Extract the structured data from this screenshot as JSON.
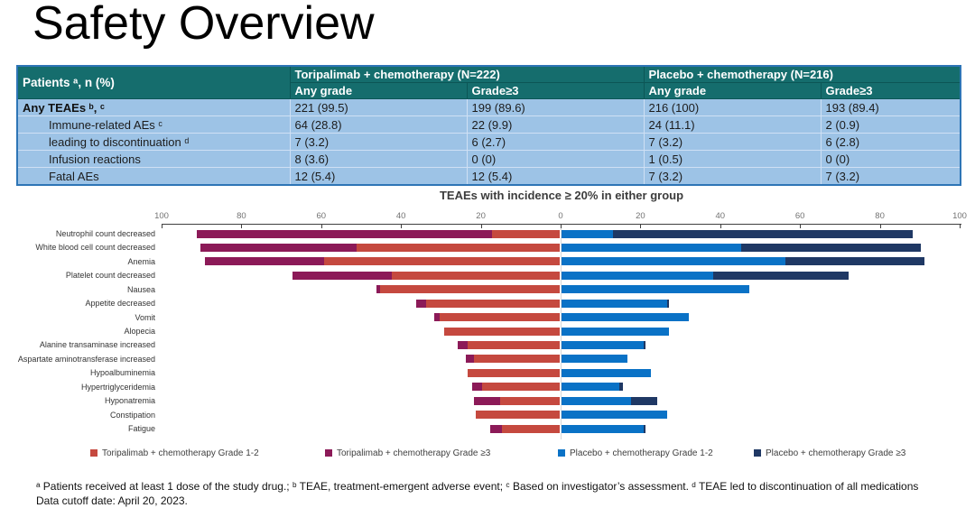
{
  "page_title": "Safety Overview",
  "table": {
    "corner_label": "Patients ᵃ, n (%)",
    "group_headers": [
      "Toripalimab + chemotherapy (N=222)",
      "Placebo + chemotherapy (N=216)"
    ],
    "sub_headers": [
      "Any grade",
      "Grade≥3",
      "Any grade",
      "Grade≥3"
    ],
    "rows": [
      {
        "label": "Any TEAEs ᵇ, ᶜ",
        "bold": true,
        "indent": false,
        "values": [
          "221 (99.5)",
          "199 (89.6)",
          "216 (100)",
          "193 (89.4)"
        ]
      },
      {
        "label": "Immune-related AEs ᶜ",
        "bold": false,
        "indent": true,
        "values": [
          "64 (28.8)",
          "22 (9.9)",
          "24 (11.1)",
          "2 (0.9)"
        ]
      },
      {
        "label": "leading to discontinuation ᵈ",
        "bold": false,
        "indent": true,
        "values": [
          "7 (3.2)",
          "6 (2.7)",
          "7 (3.2)",
          "6 (2.8)"
        ]
      },
      {
        "label": "Infusion reactions",
        "bold": false,
        "indent": true,
        "values": [
          "8 (3.6)",
          "0 (0)",
          "1 (0.5)",
          "0 (0)"
        ]
      },
      {
        "label": "Fatal AEs",
        "bold": false,
        "indent": true,
        "values": [
          "12 (5.4)",
          "12 (5.4)",
          "7 (3.2)",
          "7 (3.2)"
        ]
      }
    ]
  },
  "chart_data": {
    "type": "bar",
    "subtype": "tornado-stacked-horizontal",
    "title": "TEAEs with incidence ≥ 20% in either group",
    "xlabel": "",
    "ylabel": "",
    "xlim": [
      -100,
      100
    ],
    "axis_ticks": [
      100,
      80,
      60,
      40,
      20,
      0,
      20,
      40,
      60,
      80,
      100
    ],
    "grid": "center-line-only",
    "legend_position": "bottom",
    "categories": [
      "Neutrophil count decreased",
      "White blood cell count decreased",
      "Anemia",
      "Platelet count decreased",
      "Nausea",
      "Appetite decreased",
      "Vomit",
      "Alopecia",
      "Alanine transaminase increased",
      "Aspartate aminotransferase increased",
      "Hypoalbuminemia",
      "Hypertriglyceridemia",
      "Hyponatremia",
      "Constipation",
      "Fatigue"
    ],
    "series": [
      {
        "name": "Toripalimab + chemotherapy Grade 1-2",
        "side": "left",
        "color": "#C5493F",
        "values": [
          17,
          51,
          59,
          42,
          45,
          33.5,
          30,
          29,
          23,
          21.5,
          23,
          19.5,
          15,
          21,
          14.5
        ]
      },
      {
        "name": "Toripalimab + chemotherapy Grade ≥3",
        "side": "left",
        "color": "#8C1A58",
        "values": [
          74,
          39,
          30,
          25,
          1,
          2.5,
          1.5,
          0,
          2.5,
          2,
          0,
          2.5,
          6.5,
          0,
          3
        ]
      },
      {
        "name": "Placebo + chemotherapy Grade 1-2",
        "side": "right",
        "color": "#0A72C6",
        "values": [
          13,
          45,
          56,
          38,
          47,
          26.5,
          32,
          27,
          20.5,
          16.5,
          22.5,
          14.5,
          17.5,
          26.5,
          20.5
        ]
      },
      {
        "name": "Placebo + chemotherapy Grade ≥3",
        "side": "right",
        "color": "#1F3864",
        "values": [
          75,
          45,
          35,
          34,
          0,
          0.5,
          0,
          0,
          0.5,
          0,
          0,
          1,
          6.5,
          0,
          0.5
        ]
      }
    ],
    "legend": [
      {
        "label": "Toripalimab + chemotherapy Grade 1-2",
        "color": "#C5493F"
      },
      {
        "label": "Toripalimab + chemotherapy Grade ≥3",
        "color": "#8C1A58"
      },
      {
        "label": "Placebo + chemotherapy Grade 1-2",
        "color": "#0A72C6"
      },
      {
        "label": "Placebo + chemotherapy Grade ≥3",
        "color": "#1F3864"
      }
    ]
  },
  "footnotes": {
    "line1": "ᵃ Patients received at least 1 dose of the study drug.;  ᵇ TEAE, treatment-emergent adverse event;  ᶜ Based on investigator’s assessment. ᵈ TEAE led to discontinuation of all medications",
    "line2": "Data cutoff date: April 20, 2023."
  },
  "colors": {
    "table_header_bg": "#156D6D",
    "table_body_bg": "#9DC3E6",
    "table_border": "#2E75B6",
    "axis": "#404040",
    "tick_label": "#737373",
    "center_gridline": "#D9D9D9"
  }
}
